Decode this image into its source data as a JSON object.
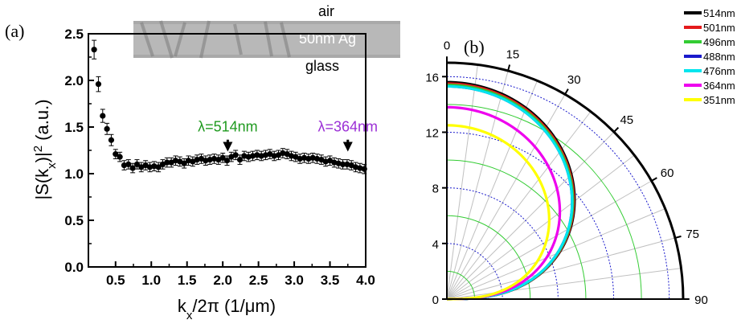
{
  "figure": {
    "panel_a_label": "(a)",
    "panel_b_label": "(b)"
  },
  "inset": {
    "top_label": "air",
    "film_label": "50nm Ag",
    "bottom_label": "glass"
  },
  "annotations": [
    {
      "text": "λ=514nm",
      "x": 2.07,
      "y": 1.33,
      "color": "#1f9a1f"
    },
    {
      "text": "λ=364nm",
      "x": 3.75,
      "y": 1.33,
      "color": "#9b2fd6"
    }
  ],
  "colors": {
    "axis": "#000000",
    "points": "#000000",
    "green_grid": "#33cc33",
    "blue_grid": "#1a1acc",
    "gray_grid": "#c0c0c0"
  },
  "chart_data": [
    {
      "type": "scatter",
      "panel": "a",
      "title": "",
      "xlabel": "k_x/2π (1/μm)",
      "ylabel": "|S(k_x)|^2 (a.u.)",
      "xlim": [
        0.12,
        4.0
      ],
      "ylim": [
        0.0,
        2.5
      ],
      "xticks": [
        "0.5",
        "1.0",
        "1.5",
        "2.0",
        "2.5",
        "3.0",
        "3.5",
        "4.0"
      ],
      "xtick_values": [
        0.5,
        1.0,
        1.5,
        2.0,
        2.5,
        3.0,
        3.5,
        4.0
      ],
      "yticks": [
        "0.0",
        "0.5",
        "1.0",
        "1.5",
        "2.0",
        "2.5"
      ],
      "ytick_values": [
        0.0,
        0.5,
        1.0,
        1.5,
        2.0,
        2.5
      ],
      "error_bars": true,
      "x": [
        0.2,
        0.26,
        0.32,
        0.38,
        0.44,
        0.5,
        0.56,
        0.62,
        0.68,
        0.74,
        0.8,
        0.86,
        0.92,
        0.98,
        1.04,
        1.1,
        1.16,
        1.22,
        1.28,
        1.34,
        1.4,
        1.46,
        1.52,
        1.58,
        1.64,
        1.7,
        1.76,
        1.82,
        1.88,
        1.94,
        2.0,
        2.06,
        2.12,
        2.18,
        2.24,
        2.3,
        2.36,
        2.42,
        2.48,
        2.54,
        2.6,
        2.66,
        2.72,
        2.78,
        2.84,
        2.9,
        2.96,
        3.02,
        3.08,
        3.14,
        3.2,
        3.26,
        3.32,
        3.38,
        3.44,
        3.5,
        3.56,
        3.62,
        3.68,
        3.74,
        3.8,
        3.86,
        3.92,
        3.98
      ],
      "y": [
        2.33,
        1.96,
        1.62,
        1.48,
        1.36,
        1.21,
        1.18,
        1.09,
        1.1,
        1.06,
        1.1,
        1.07,
        1.09,
        1.07,
        1.08,
        1.07,
        1.1,
        1.12,
        1.12,
        1.14,
        1.13,
        1.11,
        1.14,
        1.13,
        1.15,
        1.16,
        1.14,
        1.15,
        1.16,
        1.15,
        1.17,
        1.14,
        1.18,
        1.2,
        1.15,
        1.19,
        1.18,
        1.19,
        1.2,
        1.19,
        1.2,
        1.21,
        1.19,
        1.2,
        1.22,
        1.21,
        1.19,
        1.18,
        1.16,
        1.17,
        1.16,
        1.17,
        1.16,
        1.15,
        1.13,
        1.14,
        1.12,
        1.11,
        1.1,
        1.1,
        1.09,
        1.07,
        1.06,
        1.05
      ],
      "err": [
        0.1,
        0.08,
        0.07,
        0.06,
        0.06,
        0.05,
        0.05,
        0.05,
        0.05,
        0.05,
        0.05,
        0.05,
        0.05,
        0.05,
        0.05,
        0.05,
        0.05,
        0.05,
        0.05,
        0.05,
        0.05,
        0.05,
        0.05,
        0.05,
        0.05,
        0.05,
        0.05,
        0.05,
        0.05,
        0.05,
        0.05,
        0.05,
        0.05,
        0.05,
        0.05,
        0.05,
        0.05,
        0.05,
        0.05,
        0.05,
        0.05,
        0.05,
        0.05,
        0.05,
        0.05,
        0.05,
        0.05,
        0.05,
        0.05,
        0.05,
        0.05,
        0.05,
        0.05,
        0.05,
        0.05,
        0.05,
        0.05,
        0.05,
        0.05,
        0.05,
        0.05,
        0.05,
        0.05,
        0.05
      ]
    },
    {
      "type": "line",
      "panel": "b",
      "coordinate_system": "polar-quarter",
      "title": "",
      "angle_ticks": [
        "0",
        "15",
        "30",
        "45",
        "60",
        "75",
        "90"
      ],
      "angle_tick_values": [
        0,
        15,
        30,
        45,
        60,
        75,
        90
      ],
      "radius_ticks": [
        "0",
        "4",
        "8",
        "12",
        "16"
      ],
      "radius_tick_values": [
        0,
        4,
        8,
        12,
        16
      ],
      "rlim": [
        0,
        17
      ],
      "legend_position": "right",
      "series": [
        {
          "name": "514nm",
          "color": "#000000",
          "r0": 15.6
        },
        {
          "name": "501nm",
          "color": "#e41a1c",
          "r0": 15.5
        },
        {
          "name": "496nm",
          "color": "#33cc33",
          "r0": 15.4
        },
        {
          "name": "488nm",
          "color": "#1a1acc",
          "r0": 15.3
        },
        {
          "name": "476nm",
          "color": "#00e5ee",
          "r0": 15.3
        },
        {
          "name": "364nm",
          "color": "#ee00ee",
          "r0": 13.8
        },
        {
          "name": "351nm",
          "color": "#ffff00",
          "r0": 12.5
        }
      ]
    }
  ]
}
